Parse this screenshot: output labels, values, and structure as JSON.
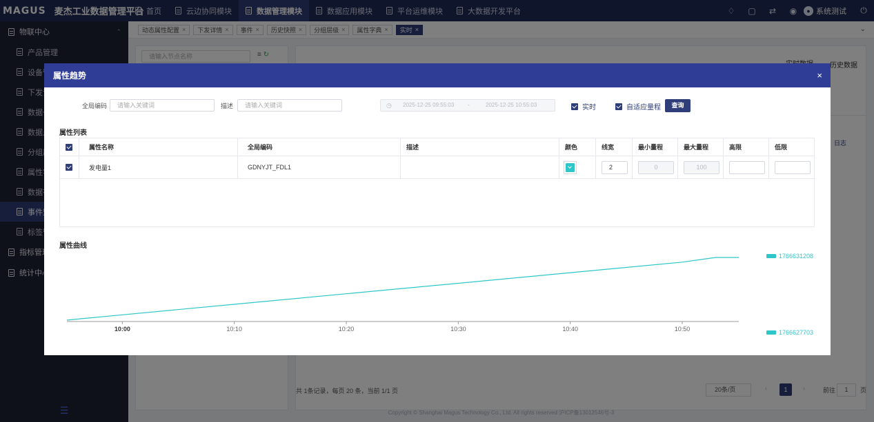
{
  "brand": {
    "logo": "MAGUS",
    "title": "麦杰工业数据管理平台"
  },
  "topnav": [
    {
      "label": "首页",
      "active": false
    },
    {
      "label": "云边协同模块",
      "active": false
    },
    {
      "label": "数据管理模块",
      "active": true
    },
    {
      "label": "数据应用模块",
      "active": false
    },
    {
      "label": "平台运维模块",
      "active": false
    },
    {
      "label": "大数据开发平台",
      "active": false
    }
  ],
  "topright": {
    "user_name": "系统测试"
  },
  "sidebar": {
    "group1": "物联中心",
    "items": [
      {
        "label": "产品管理",
        "active": false
      },
      {
        "label": "设备管理",
        "active": false
      },
      {
        "label": "下发详情",
        "active": false
      },
      {
        "label": "数据一",
        "active": false
      },
      {
        "label": "数据点",
        "active": false
      },
      {
        "label": "分组层",
        "active": false
      },
      {
        "label": "属性字",
        "active": false
      },
      {
        "label": "数据有",
        "active": false
      },
      {
        "label": "事件监",
        "active": true
      },
      {
        "label": "标签管",
        "active": false
      }
    ],
    "group2": "指标管理",
    "group3": "统计中心",
    "bottom_icon": "menu-icon"
  },
  "tabs": [
    {
      "label": "动态属性配置",
      "active": false
    },
    {
      "label": "下发详情",
      "active": false
    },
    {
      "label": "事件",
      "active": false
    },
    {
      "label": "历史快照",
      "active": false
    },
    {
      "label": "分组层级",
      "active": false
    },
    {
      "label": "属性字典",
      "active": false
    },
    {
      "label": "实时",
      "active": true
    }
  ],
  "background": {
    "tree_search_placeholder": "请输入节点名称",
    "tab_realtime": "实时数据",
    "tab_history": "历史数据",
    "log_label": "日志",
    "pager": {
      "total": "共 1条记录，每页 20 条，当前 1/1 页",
      "page_size": "20条/页",
      "current_page": "1",
      "goto_label": "前往",
      "goto_value": "1",
      "page_suffix": "页"
    },
    "copyright": "Copyright © Shanghai Magus Technology Co., Ltd. All rights reserved    沪ICP备13012546号-3"
  },
  "modal": {
    "title": "属性趋势",
    "close": "×",
    "form": {
      "code_label": "全局编码",
      "code_placeholder": "请输入关键词",
      "desc_label": "描述",
      "desc_placeholder": "请输入关键词",
      "date_start": "2025-12-25 09:55:03",
      "date_sep": "-",
      "date_end": "2025-12-25 10:55:03",
      "realtime_label": "实时",
      "adaptive_label": "自适应量程",
      "query_button": "查询"
    },
    "attr_list_title": "属性列表",
    "table": {
      "headers": [
        "属性名称",
        "全局编码",
        "描述",
        "颜色",
        "线宽",
        "最小量程",
        "最大量程",
        "高限",
        "低限"
      ],
      "rows": [
        {
          "name": "发电量1",
          "code": "GDNYJT_FDL1",
          "desc": "",
          "color": "#2ec6c8",
          "line_width": "2",
          "min_range": "0",
          "max_range": "100",
          "high": "",
          "low": ""
        }
      ]
    },
    "curve_title": "属性曲线"
  },
  "chart_data": {
    "type": "line",
    "title": "",
    "xlabel": "",
    "ylabel": "",
    "x_ticks": [
      "10:00",
      "10:10",
      "10:20",
      "10:30",
      "10:40",
      "10:50"
    ],
    "x_range": [
      "09:55:03",
      "10:55:03"
    ],
    "ylim": [
      1766627703,
      1766631208
    ],
    "legend_labels": [
      "1766631208",
      "1766627703"
    ],
    "legend_position": "right",
    "grid": false,
    "series": [
      {
        "color": "#2ec6c8",
        "x": [
          "09:55:03",
          "10:00",
          "10:10",
          "10:20",
          "10:30",
          "10:40",
          "10:50",
          "10:53",
          "10:55:03"
        ],
        "values": [
          1766627703,
          1766628000,
          1766628590,
          1766629180,
          1766629765,
          1766630355,
          1766630945,
          1766631208,
          1766631208
        ]
      }
    ]
  }
}
